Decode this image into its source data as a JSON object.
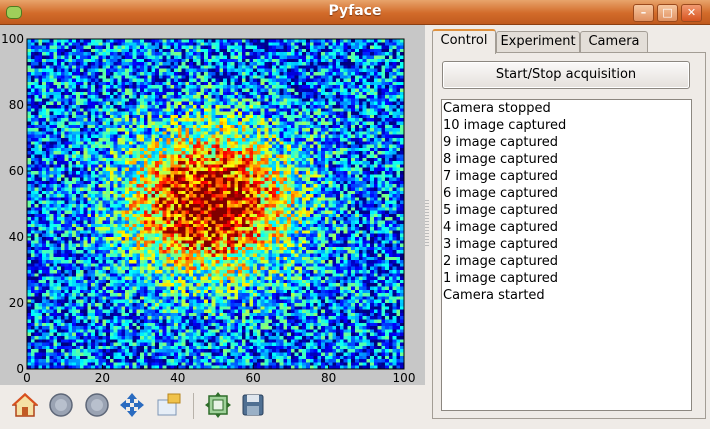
{
  "window": {
    "title": "Pyface"
  },
  "tabs": [
    {
      "label": "Control"
    },
    {
      "label": "Experiment"
    },
    {
      "label": "Camera"
    }
  ],
  "control": {
    "start_stop_label": "Start/Stop acquisition",
    "log": [
      "Camera stopped",
      "10 image captured",
      "9 image captured",
      "8 image captured",
      "7 image captured",
      "6 image captured",
      "5 image captured",
      "4 image captured",
      "3 image captured",
      "2 image captured",
      "1 image captured",
      "Camera started"
    ]
  },
  "toolbar": {
    "icons": [
      "home-icon",
      "back-icon",
      "forward-icon",
      "pan-icon",
      "zoom-icon",
      "subplots-icon",
      "save-icon"
    ]
  },
  "chart_data": {
    "type": "heatmap",
    "title": "",
    "xlabel": "",
    "ylabel": "",
    "xlim": [
      0,
      100
    ],
    "ylim": [
      0,
      100
    ],
    "xticks": [
      "0",
      "20",
      "40",
      "60",
      "80",
      "100"
    ],
    "yticks": [
      "0",
      "20",
      "40",
      "60",
      "80",
      "100"
    ],
    "grid_size": [
      100,
      100
    ],
    "colormap": "jet",
    "peak_center": [
      48,
      50
    ],
    "peak_value": 0.75,
    "noise": "uniform random"
  },
  "colors": {
    "titlebar": "#d26b2a",
    "tab_active_accent": "#e0913d",
    "plot_background": "#c7c7c7"
  }
}
